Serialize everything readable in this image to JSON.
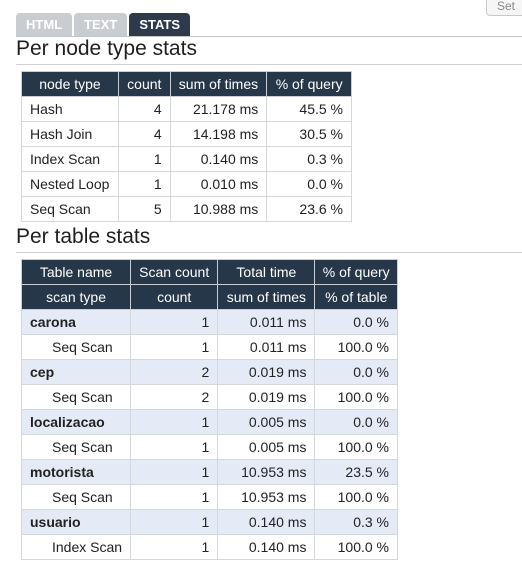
{
  "corner_button": {
    "label": "Set"
  },
  "tabs": [
    {
      "label": "HTML",
      "active": false
    },
    {
      "label": "TEXT",
      "active": false
    },
    {
      "label": "STATS",
      "active": true
    }
  ],
  "node_stats": {
    "title": "Per node type stats",
    "headers": [
      "node type",
      "count",
      "sum of times",
      "% of query"
    ],
    "rows": [
      [
        "Hash",
        "4",
        "21.178 ms",
        "45.5 %"
      ],
      [
        "Hash Join",
        "4",
        "14.198 ms",
        "30.5 %"
      ],
      [
        "Index Scan",
        "1",
        "0.140 ms",
        "0.3 %"
      ],
      [
        "Nested Loop",
        "1",
        "0.010 ms",
        "0.0 %"
      ],
      [
        "Seq Scan",
        "5",
        "10.988 ms",
        "23.6 %"
      ]
    ]
  },
  "table_stats": {
    "title": "Per table stats",
    "headers_top": [
      "Table name",
      "Scan count",
      "Total time",
      "% of query"
    ],
    "headers_sub": [
      "scan type",
      "count",
      "sum of times",
      "% of table"
    ],
    "rows": [
      {
        "kind": "table",
        "cells": [
          "carona",
          "1",
          "0.011 ms",
          "0.0 %"
        ]
      },
      {
        "kind": "scan",
        "cells": [
          "Seq Scan",
          "1",
          "0.011 ms",
          "100.0 %"
        ]
      },
      {
        "kind": "table",
        "cells": [
          "cep",
          "2",
          "0.019 ms",
          "0.0 %"
        ]
      },
      {
        "kind": "scan",
        "cells": [
          "Seq Scan",
          "2",
          "0.019 ms",
          "100.0 %"
        ]
      },
      {
        "kind": "table",
        "cells": [
          "localizacao",
          "1",
          "0.005 ms",
          "0.0 %"
        ]
      },
      {
        "kind": "scan",
        "cells": [
          "Seq Scan",
          "1",
          "0.005 ms",
          "100.0 %"
        ]
      },
      {
        "kind": "table",
        "cells": [
          "motorista",
          "1",
          "10.953 ms",
          "23.5 %"
        ]
      },
      {
        "kind": "scan",
        "cells": [
          "Seq Scan",
          "1",
          "10.953 ms",
          "100.0 %"
        ]
      },
      {
        "kind": "table",
        "cells": [
          "usuario",
          "1",
          "0.140 ms",
          "0.3 %"
        ]
      },
      {
        "kind": "scan",
        "cells": [
          "Index Scan",
          "1",
          "0.140 ms",
          "100.0 %"
        ]
      }
    ]
  }
}
